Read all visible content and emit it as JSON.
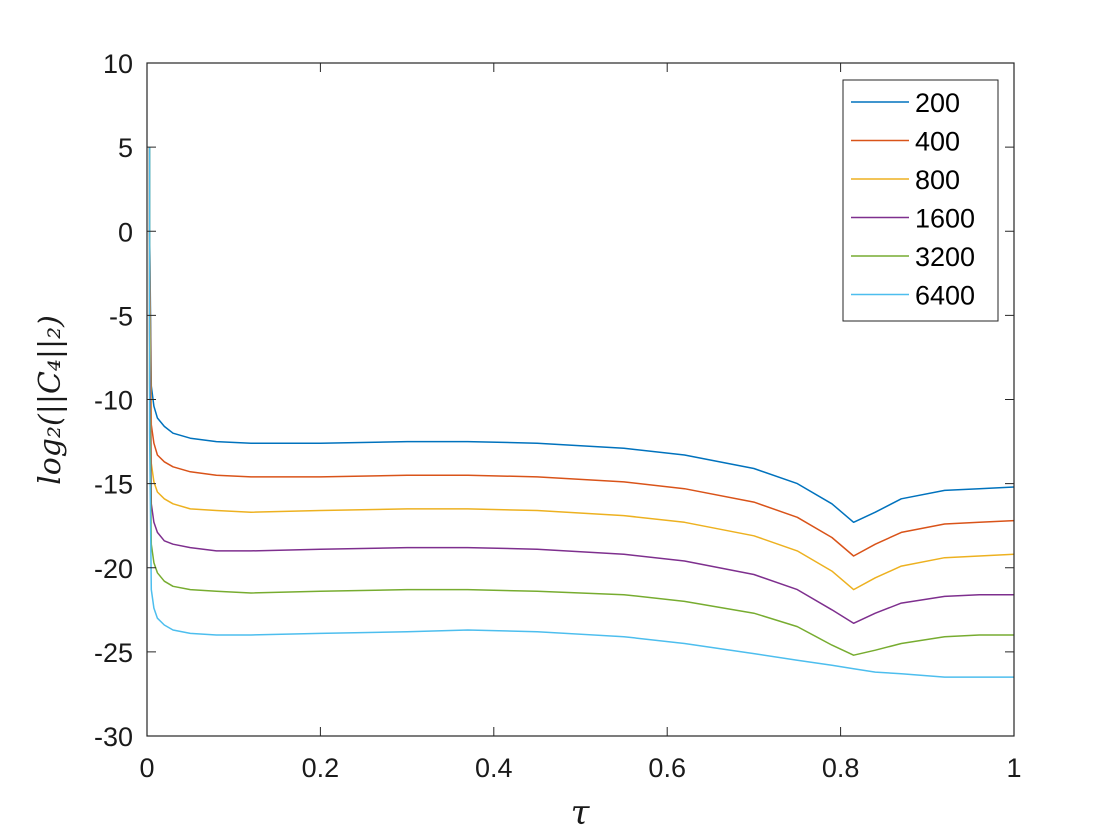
{
  "chart_data": {
    "type": "line",
    "xlabel": "τ",
    "ylabel": "log₂(||C₄||₂)",
    "xlim": [
      0,
      1
    ],
    "ylim": [
      -30,
      10
    ],
    "xticks": [
      0,
      0.2,
      0.4,
      0.6,
      0.8,
      1
    ],
    "yticks": [
      10,
      5,
      0,
      -5,
      -10,
      -15,
      -20,
      -25,
      -30
    ],
    "xtick_labels": [
      "0",
      "0.2",
      "0.4",
      "0.6",
      "0.8",
      "1"
    ],
    "ytick_labels": [
      "10",
      "5",
      "0",
      "-5",
      "-10",
      "-15",
      "-20",
      "-25",
      "-30"
    ],
    "grid": false,
    "legend_position": "top-right",
    "x": [
      0.003,
      0.005,
      0.008,
      0.012,
      0.02,
      0.03,
      0.05,
      0.08,
      0.12,
      0.2,
      0.3,
      0.37,
      0.45,
      0.55,
      0.62,
      0.7,
      0.75,
      0.79,
      0.815,
      0.84,
      0.87,
      0.92,
      0.96,
      1.0
    ],
    "series": [
      {
        "name": "200",
        "color": "#0072BD",
        "values": [
          0,
          -9.2,
          -10.4,
          -11.1,
          -11.6,
          -12.0,
          -12.3,
          -12.5,
          -12.6,
          -12.6,
          -12.5,
          -12.5,
          -12.6,
          -12.9,
          -13.3,
          -14.1,
          -15.0,
          -16.2,
          -17.3,
          -16.7,
          -15.9,
          -15.4,
          -15.3,
          -15.2
        ]
      },
      {
        "name": "400",
        "color": "#D95319",
        "values": [
          0,
          -11.5,
          -12.6,
          -13.3,
          -13.7,
          -14.0,
          -14.3,
          -14.5,
          -14.6,
          -14.6,
          -14.5,
          -14.5,
          -14.6,
          -14.9,
          -15.3,
          -16.1,
          -17.0,
          -18.2,
          -19.3,
          -18.6,
          -17.9,
          -17.4,
          -17.3,
          -17.2
        ]
      },
      {
        "name": "800",
        "color": "#EDB120",
        "values": [
          -3,
          -13.8,
          -14.9,
          -15.5,
          -15.9,
          -16.2,
          -16.5,
          -16.6,
          -16.7,
          -16.6,
          -16.5,
          -16.5,
          -16.6,
          -16.9,
          -17.3,
          -18.1,
          -19.0,
          -20.2,
          -21.3,
          -20.6,
          -19.9,
          -19.4,
          -19.3,
          -19.2
        ]
      },
      {
        "name": "1600",
        "color": "#7E2F8E",
        "values": [
          -6,
          -16.2,
          -17.3,
          -17.9,
          -18.4,
          -18.6,
          -18.8,
          -19.0,
          -19.0,
          -18.9,
          -18.8,
          -18.8,
          -18.9,
          -19.2,
          -19.6,
          -20.4,
          -21.3,
          -22.5,
          -23.3,
          -22.7,
          -22.1,
          -21.7,
          -21.6,
          -21.6
        ]
      },
      {
        "name": "3200",
        "color": "#77AC30",
        "values": [
          -9,
          -18.6,
          -19.7,
          -20.3,
          -20.8,
          -21.1,
          -21.3,
          -21.4,
          -21.5,
          -21.4,
          -21.3,
          -21.3,
          -21.4,
          -21.6,
          -22.0,
          -22.7,
          -23.5,
          -24.6,
          -25.2,
          -24.9,
          -24.5,
          -24.1,
          -24.0,
          -24.0
        ]
      },
      {
        "name": "6400",
        "color": "#4DBEEE",
        "values": [
          -12,
          -21.3,
          -22.4,
          -23.0,
          -23.4,
          -23.7,
          -23.9,
          -24.0,
          -24.0,
          -23.9,
          -23.8,
          -23.7,
          -23.8,
          -24.1,
          -24.5,
          -25.1,
          -25.5,
          -25.8,
          -26.0,
          -26.2,
          -26.3,
          -26.5,
          -26.5,
          -26.5
        ]
      }
    ]
  }
}
